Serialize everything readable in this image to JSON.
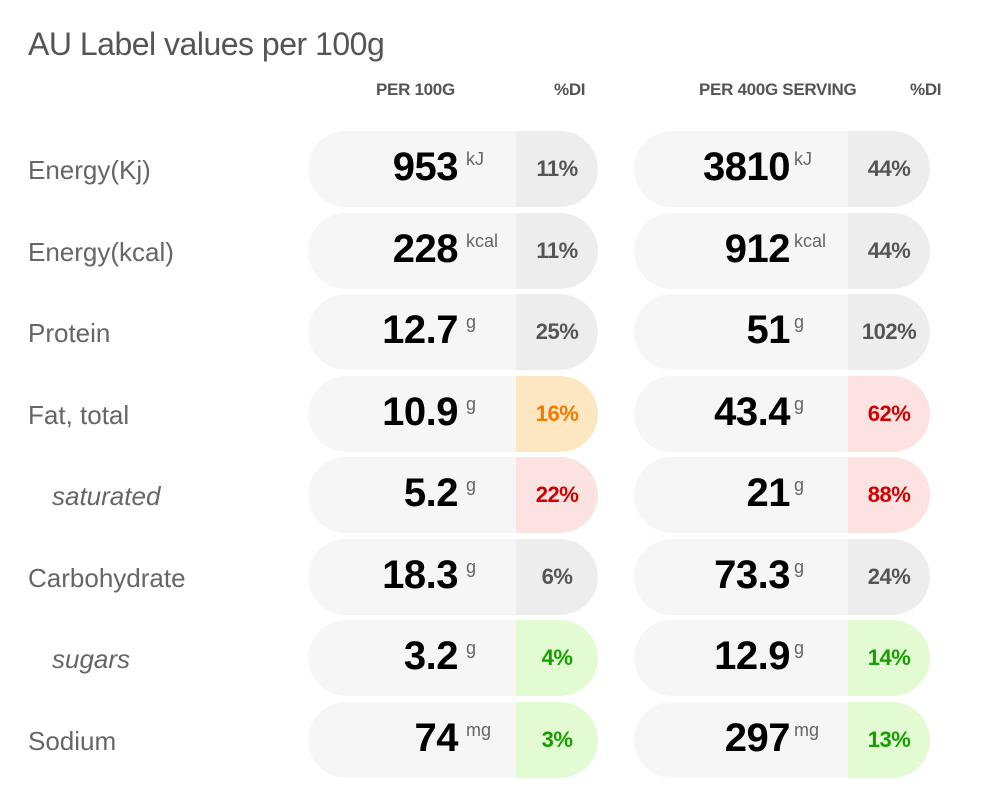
{
  "title": "AU Label values per 100g",
  "headers": {
    "per100": "PER 100G",
    "di1": "%DI",
    "perServing": "PER 400G SERVING",
    "di2": "%DI"
  },
  "rows": [
    {
      "label": "Energy(Kj)",
      "sub": false,
      "a": {
        "value": "953",
        "unit": "kJ",
        "pct": "11%",
        "level": "neutral"
      },
      "b": {
        "value": "3810",
        "unit": "kJ",
        "pct": "44%",
        "level": "neutral"
      }
    },
    {
      "label": "Energy(kcal)",
      "sub": false,
      "a": {
        "value": "228",
        "unit": "kcal",
        "pct": "11%",
        "level": "neutral"
      },
      "b": {
        "value": "912",
        "unit": "kcal",
        "pct": "44%",
        "level": "neutral"
      }
    },
    {
      "label": "Protein",
      "sub": false,
      "a": {
        "value": "12.7",
        "unit": "g",
        "pct": "25%",
        "level": "neutral"
      },
      "b": {
        "value": "51",
        "unit": "g",
        "pct": "102%",
        "level": "neutral"
      }
    },
    {
      "label": "Fat, total",
      "sub": false,
      "a": {
        "value": "10.9",
        "unit": "g",
        "pct": "16%",
        "level": "orange"
      },
      "b": {
        "value": "43.4",
        "unit": "g",
        "pct": "62%",
        "level": "red"
      }
    },
    {
      "label": "saturated",
      "sub": true,
      "a": {
        "value": "5.2",
        "unit": "g",
        "pct": "22%",
        "level": "red"
      },
      "b": {
        "value": "21",
        "unit": "g",
        "pct": "88%",
        "level": "red"
      }
    },
    {
      "label": "Carbohydrate",
      "sub": false,
      "a": {
        "value": "18.3",
        "unit": "g",
        "pct": "6%",
        "level": "neutral"
      },
      "b": {
        "value": "73.3",
        "unit": "g",
        "pct": "24%",
        "level": "neutral"
      }
    },
    {
      "label": "sugars",
      "sub": true,
      "a": {
        "value": "3.2",
        "unit": "g",
        "pct": "4%",
        "level": "green"
      },
      "b": {
        "value": "12.9",
        "unit": "g",
        "pct": "14%",
        "level": "green"
      }
    },
    {
      "label": "Sodium",
      "sub": false,
      "a": {
        "value": "74",
        "unit": "mg",
        "pct": "3%",
        "level": "green"
      },
      "b": {
        "value": "297",
        "unit": "mg",
        "pct": "13%",
        "level": "green"
      }
    }
  ],
  "colors": {
    "neutral": "#555555",
    "orange": "#f27a00",
    "red": "#d10000",
    "green": "#179e00"
  }
}
